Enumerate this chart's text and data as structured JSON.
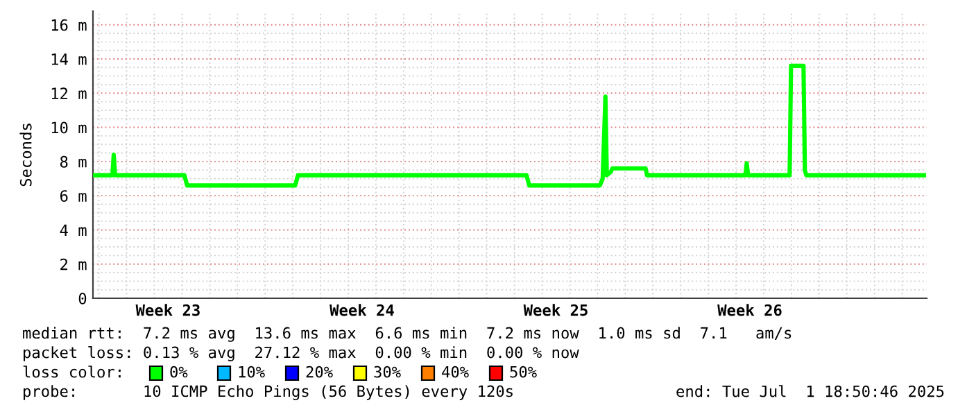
{
  "chart_data": {
    "type": "line",
    "ylabel": "Seconds",
    "x": [
      "2025-06-01T18:50",
      "2025-06-02T11:38",
      "2025-06-02T12:50",
      "2025-06-02T14:02",
      "2025-06-05T02:02",
      "2025-06-05T04:26",
      "2025-06-09T02:02",
      "2025-06-09T04:26",
      "2025-06-17T10:26",
      "2025-06-17T12:50",
      "2025-06-20T02:02",
      "2025-06-20T04:26",
      "2025-06-20T06:50",
      "2025-06-20T08:02",
      "2025-06-20T11:38",
      "2025-06-20T12:50",
      "2025-06-21T17:38",
      "2025-06-21T18:50",
      "2025-06-25T08:02",
      "2025-06-25T09:14",
      "2025-06-25T10:26",
      "2025-06-26T22:26",
      "2025-06-26T23:38",
      "2025-06-27T10:26",
      "2025-06-27T11:38",
      "2025-06-27T12:50",
      "2025-07-01T18:50"
    ],
    "series": [
      {
        "color": "#00ff00",
        "values": [
          7.2,
          7.2,
          8.4,
          7.2,
          7.2,
          6.6,
          6.6,
          7.2,
          7.2,
          6.6,
          6.6,
          7.0,
          11.8,
          7.2,
          7.4,
          7.6,
          7.6,
          7.2,
          7.2,
          7.9,
          7.2,
          7.2,
          13.6,
          13.6,
          7.5,
          7.2,
          7.2
        ]
      }
    ],
    "xlim": [
      "2025-06-01T18:50",
      "2025-07-01T21:14"
    ],
    "xticks": [
      {
        "value": "2025-06-02",
        "label": null
      },
      {
        "value": "2025-06-03",
        "label": null
      },
      {
        "value": "2025-06-04",
        "label": null
      },
      {
        "value": "2025-06-04T12:00",
        "label": "Week 23"
      },
      {
        "value": "2025-06-05",
        "label": null
      },
      {
        "value": "2025-06-06",
        "label": null
      },
      {
        "value": "2025-06-07",
        "label": null
      },
      {
        "value": "2025-06-08",
        "label": null
      },
      {
        "value": "2025-06-09",
        "label": null
      },
      {
        "value": "2025-06-10",
        "label": null
      },
      {
        "value": "2025-06-11",
        "label": null
      },
      {
        "value": "2025-06-11T12:00",
        "label": "Week 24"
      },
      {
        "value": "2025-06-12",
        "label": null
      },
      {
        "value": "2025-06-13",
        "label": null
      },
      {
        "value": "2025-06-14",
        "label": null
      },
      {
        "value": "2025-06-15",
        "label": null
      },
      {
        "value": "2025-06-16",
        "label": null
      },
      {
        "value": "2025-06-17",
        "label": null
      },
      {
        "value": "2025-06-18",
        "label": null
      },
      {
        "value": "2025-06-18T12:00",
        "label": "Week 25"
      },
      {
        "value": "2025-06-19",
        "label": null
      },
      {
        "value": "2025-06-20",
        "label": null
      },
      {
        "value": "2025-06-21",
        "label": null
      },
      {
        "value": "2025-06-22",
        "label": null
      },
      {
        "value": "2025-06-23",
        "label": null
      },
      {
        "value": "2025-06-24",
        "label": null
      },
      {
        "value": "2025-06-25",
        "label": null
      },
      {
        "value": "2025-06-25T12:00",
        "label": "Week 26"
      },
      {
        "value": "2025-06-26",
        "label": null
      },
      {
        "value": "2025-06-27",
        "label": null
      },
      {
        "value": "2025-06-28",
        "label": null
      },
      {
        "value": "2025-06-29",
        "label": null
      },
      {
        "value": "2025-06-30",
        "label": null
      },
      {
        "value": "2025-07-01",
        "label": null
      }
    ],
    "ylim": [
      0,
      16.8
    ],
    "yticks": [
      0,
      {
        "value": 0.5,
        "label": null
      },
      {
        "value": 1,
        "label": null
      },
      {
        "value": 1.5,
        "label": null
      },
      {
        "value": 2,
        "label": "2 m"
      },
      {
        "value": 2.5,
        "label": null
      },
      {
        "value": 3,
        "label": null
      },
      {
        "value": 3.5,
        "label": null
      },
      {
        "value": 4,
        "label": "4 m"
      },
      {
        "value": 4.5,
        "label": null
      },
      {
        "value": 5,
        "label": null
      },
      {
        "value": 5.5,
        "label": null
      },
      {
        "value": 6,
        "label": "6 m"
      },
      {
        "value": 6.5,
        "label": null
      },
      {
        "value": 7,
        "label": null
      },
      {
        "value": 7.5,
        "label": null
      },
      {
        "value": 8,
        "label": "8 m"
      },
      {
        "value": 8.5,
        "label": null
      },
      {
        "value": 9,
        "label": null
      },
      {
        "value": 9.5,
        "label": null
      },
      {
        "value": 10,
        "label": "10 m"
      },
      {
        "value": 10.5,
        "label": null
      },
      {
        "value": 11,
        "label": null
      },
      {
        "value": 11.5,
        "label": null
      },
      {
        "value": 12,
        "label": "12 m"
      },
      {
        "value": 12.5,
        "label": null
      },
      {
        "value": 13,
        "label": null
      },
      {
        "value": 13.5,
        "label": null
      },
      {
        "value": 14,
        "label": "14 m"
      },
      {
        "value": 14.5,
        "label": null
      },
      {
        "value": 15,
        "label": null
      },
      {
        "value": 15.5,
        "label": null
      },
      {
        "value": 16,
        "label": "16 m"
      }
    ],
    "grid": true,
    "line_style": "solid",
    "annotations": [
      "median rtt:  7.2 ms avg  13.6 ms max  6.6 ms min  7.2 ms now  1.0 ms sd  7.1   am/s",
      "packet loss: 0.13 % avg  27.12 % max  0.00 % min  0.00 % now",
      "loss color:",
      "0%",
      "10%",
      "20%",
      "30%",
      "40%",
      "50%",
      "probe:       10 ICMP Echo Pings (56 Bytes) every 120s",
      "end: Tue Jul  1 18:50:46 2025"
    ]
  }
}
